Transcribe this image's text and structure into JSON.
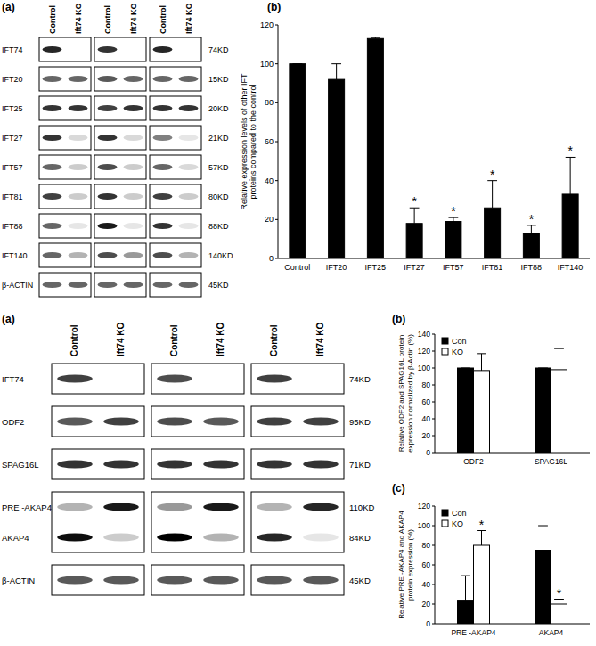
{
  "chart_data": [
    {
      "type": "bar",
      "panel_label": "(b)",
      "y_label": "Relative expression levels of other IFT proteins compared to the control",
      "categories": [
        "Control",
        "IFT20",
        "IFT25",
        "IFT27",
        "IFT57",
        "IFT81",
        "IFT88",
        "IFT140"
      ],
      "values": [
        100,
        92,
        113,
        18,
        19,
        26,
        13,
        33
      ],
      "errors": [
        0,
        8,
        0.5,
        8,
        2,
        14,
        4,
        19
      ],
      "color": "#000000",
      "ylim": [
        0,
        120
      ],
      "yticks": [
        0,
        20,
        40,
        60,
        80,
        100,
        120
      ],
      "grid": false,
      "annotations": [
        {
          "category": "IFT27",
          "text": "*"
        },
        {
          "category": "IFT57",
          "text": "*"
        },
        {
          "category": "IFT81",
          "text": "*"
        },
        {
          "category": "IFT88",
          "text": "*"
        },
        {
          "category": "IFT140",
          "text": "*"
        }
      ]
    },
    {
      "type": "bar",
      "panel_label": "(b)",
      "y_label": "Relative ODF2 and SPAG16L protein expression normalized by β-Actin (%)",
      "categories": [
        "ODF2",
        "SPAG16L"
      ],
      "series": [
        {
          "name": "Con",
          "color": "#000000",
          "values": [
            100,
            100
          ],
          "errors": [
            0,
            0
          ]
        },
        {
          "name": "KO",
          "color": "#ffffff",
          "values": [
            97,
            98
          ],
          "errors": [
            20,
            25
          ]
        }
      ],
      "ylim": [
        0,
        140
      ],
      "yticks": [
        0,
        20,
        40,
        60,
        80,
        100,
        120,
        140
      ],
      "grid": false,
      "legend": "upper left"
    },
    {
      "type": "bar",
      "panel_label": "(c)",
      "y_label": "Relative PRE -AKAP4 and AKAP4 protein expression (%)",
      "categories": [
        "PRE -AKAP4",
        "AKAP4"
      ],
      "series": [
        {
          "name": "Con",
          "color": "#000000",
          "values": [
            24,
            75
          ],
          "errors": [
            25,
            25
          ]
        },
        {
          "name": "KO",
          "color": "#ffffff",
          "values": [
            80,
            20
          ],
          "errors": [
            15,
            5
          ]
        }
      ],
      "ylim": [
        0,
        120
      ],
      "yticks": [
        0,
        20,
        40,
        60,
        80,
        100,
        120
      ],
      "grid": false,
      "legend": "upper left",
      "annotations": [
        {
          "series": "KO",
          "category": "PRE -AKAP4",
          "text": "*"
        },
        {
          "series": "KO",
          "category": "AKAP4",
          "text": "*"
        }
      ]
    }
  ],
  "blots": [
    {
      "panel_label": "(a)",
      "lanes": [
        "Control",
        "Ift74 KO",
        "Control",
        "Ift74 KO",
        "Control",
        "Ift74 KO"
      ],
      "rows": [
        {
          "labels": [
            "IFT74"
          ],
          "sizes": [
            "74KD"
          ],
          "bands": [
            [
              0.85,
              0,
              0.8,
              0,
              0.85,
              0
            ]
          ]
        },
        {
          "labels": [
            "IFT20"
          ],
          "sizes": [
            "15KD"
          ],
          "bands": [
            [
              0.6,
              0.6,
              0.65,
              0.6,
              0.6,
              0.6
            ]
          ]
        },
        {
          "labels": [
            "IFT25"
          ],
          "sizes": [
            "20KD"
          ],
          "bands": [
            [
              0.8,
              0.8,
              0.75,
              0.8,
              0.8,
              0.8
            ]
          ]
        },
        {
          "labels": [
            "IFT27"
          ],
          "sizes": [
            "21KD"
          ],
          "bands": [
            [
              0.8,
              0.15,
              0.8,
              0.15,
              0.5,
              0.1
            ]
          ]
        },
        {
          "labels": [
            "IFT57"
          ],
          "sizes": [
            "57KD"
          ],
          "bands": [
            [
              0.6,
              0.2,
              0.7,
              0.2,
              0.6,
              0.15
            ]
          ]
        },
        {
          "labels": [
            "IFT81"
          ],
          "sizes": [
            "80KD"
          ],
          "bands": [
            [
              0.75,
              0.2,
              0.8,
              0.2,
              0.75,
              0.2
            ]
          ]
        },
        {
          "labels": [
            "IFT88"
          ],
          "sizes": [
            "88KD"
          ],
          "bands": [
            [
              0.6,
              0.1,
              0.9,
              0.1,
              0.8,
              0.1
            ]
          ]
        },
        {
          "labels": [
            "IFT140"
          ],
          "sizes": [
            "140KD"
          ],
          "bands": [
            [
              0.6,
              0.3,
              0.7,
              0.4,
              0.7,
              0.3
            ]
          ]
        },
        {
          "labels": [
            "β-ACTIN"
          ],
          "sizes": [
            "45KD"
          ],
          "bands": [
            [
              0.6,
              0.6,
              0.6,
              0.6,
              0.6,
              0.6
            ]
          ]
        }
      ]
    },
    {
      "panel_label": "(a)",
      "lanes": [
        "Control",
        "Ift74 KO",
        "Control",
        "Ift74 KO",
        "Control",
        "Ift74 KO"
      ],
      "rows": [
        {
          "labels": [
            "IFT74"
          ],
          "sizes": [
            "74KD"
          ],
          "bands": [
            [
              0.75,
              0,
              0.7,
              0,
              0.75,
              0
            ]
          ]
        },
        {
          "labels": [
            "ODF2"
          ],
          "sizes": [
            "95KD"
          ],
          "bands": [
            [
              0.65,
              0.75,
              0.7,
              0.65,
              0.75,
              0.75
            ]
          ]
        },
        {
          "labels": [
            "SPAG16L"
          ],
          "sizes": [
            "71KD"
          ],
          "bands": [
            [
              0.8,
              0.8,
              0.8,
              0.8,
              0.8,
              0.8
            ]
          ]
        },
        {
          "labels": [
            "PRE -AKAP4",
            "AKAP4"
          ],
          "sizes": [
            "110KD",
            "84KD"
          ],
          "bands": [
            [
              0.3,
              0.9,
              0.4,
              0.9,
              0.3,
              0.85
            ],
            [
              0.95,
              0.2,
              1,
              0.3,
              0.85,
              0.1
            ]
          ]
        },
        {
          "labels": [
            "β-ACTIN"
          ],
          "sizes": [
            "45KD"
          ],
          "bands": [
            [
              0.65,
              0.65,
              0.65,
              0.65,
              0.65,
              0.65
            ]
          ]
        }
      ]
    }
  ]
}
